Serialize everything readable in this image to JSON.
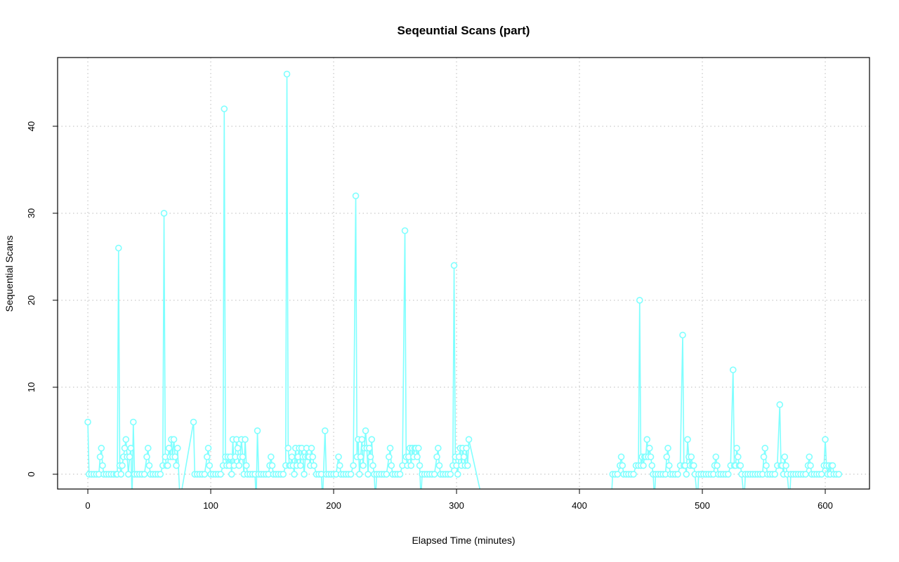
{
  "chart_data": {
    "type": "line",
    "title": "Seqeuntial Scans (part)",
    "xlabel": "Elapsed Time (minutes)",
    "ylabel": "Sequential Scans",
    "xlim": [
      -24.6,
      636
    ],
    "ylim": [
      -1.7,
      47.9
    ],
    "xticks": [
      "0",
      "100",
      "200",
      "300",
      "400",
      "500",
      "600"
    ],
    "yticks": [
      "0",
      "10",
      "20",
      "30",
      "40"
    ],
    "grid": true,
    "markers": "open-circle",
    "color": "#80ffff",
    "segments": [
      {
        "x": [
          0,
          1,
          3,
          5,
          7,
          9,
          10,
          11,
          12,
          13,
          15,
          17,
          19,
          21,
          23,
          24,
          25,
          26,
          27,
          28,
          29,
          30,
          31,
          32,
          33,
          34,
          35,
          36,
          37,
          38,
          40,
          42,
          44,
          46,
          48,
          49,
          50,
          51,
          53,
          55,
          57,
          59,
          61,
          62,
          63,
          64,
          65,
          66,
          67,
          68,
          69,
          70,
          71,
          72,
          73,
          75,
          86,
          87,
          89,
          91,
          93,
          95,
          97,
          98,
          99,
          100,
          102,
          104,
          106,
          108,
          110,
          111,
          112,
          113,
          114,
          115,
          116,
          117,
          118,
          119,
          120,
          121,
          122,
          123,
          124,
          125,
          126,
          127,
          128,
          129,
          130,
          132,
          134,
          136,
          137,
          138,
          139,
          141,
          143,
          145,
          147,
          148,
          149,
          150,
          151,
          153,
          155,
          157,
          159,
          161,
          162,
          163,
          164,
          165,
          166,
          167,
          168,
          169,
          170,
          171,
          172,
          173,
          174,
          175,
          176,
          177,
          178,
          179,
          180,
          181,
          182,
          183,
          184,
          186,
          188,
          190,
          191,
          193,
          194,
          196,
          198,
          200,
          202,
          204,
          205,
          206,
          208,
          210,
          212,
          214,
          216,
          218,
          219,
          220,
          221,
          222,
          223,
          224,
          225,
          226,
          227,
          228,
          229,
          230,
          231,
          232,
          233,
          234,
          235,
          237,
          239,
          241,
          243,
          245,
          246,
          247,
          248,
          250,
          252,
          254,
          256,
          258,
          259,
          260,
          261,
          262,
          263,
          264,
          265,
          266,
          267,
          268,
          269,
          270,
          271,
          272,
          274,
          276,
          278,
          280,
          282,
          284,
          285,
          286,
          287,
          289,
          291,
          293,
          295,
          297,
          298,
          299,
          300,
          301,
          302,
          303,
          304,
          305,
          306,
          307,
          308,
          309,
          310,
          321
        ],
        "y": [
          6,
          0,
          0,
          0,
          0,
          0,
          2,
          3,
          1,
          0,
          0,
          0,
          0,
          0,
          0,
          0,
          26,
          1,
          0,
          1,
          2,
          3,
          4,
          2,
          0,
          2,
          3,
          -3,
          6,
          0,
          0,
          0,
          0,
          0,
          2,
          3,
          1,
          0,
          0,
          0,
          0,
          0,
          1,
          30,
          2,
          1,
          1,
          3,
          2,
          4,
          2,
          4,
          2,
          1,
          3,
          -3,
          6,
          0,
          0,
          0,
          0,
          0,
          2,
          3,
          1,
          0,
          0,
          0,
          0,
          0,
          1,
          42,
          2,
          1,
          2,
          1,
          2,
          0,
          4,
          1,
          2,
          4,
          3,
          1,
          2,
          4,
          2,
          0,
          4,
          1,
          0,
          0,
          0,
          0,
          -3,
          5,
          0,
          0,
          0,
          0,
          0,
          1,
          2,
          1,
          0,
          0,
          0,
          0,
          0,
          1,
          46,
          3,
          1,
          1,
          2,
          1,
          0,
          3,
          1,
          2,
          3,
          1,
          3,
          2,
          0,
          2,
          3,
          2,
          2,
          1,
          3,
          2,
          1,
          0,
          0,
          0,
          -3,
          5,
          0,
          0,
          0,
          0,
          0,
          2,
          1,
          0,
          0,
          0,
          0,
          0,
          1,
          32,
          2,
          4,
          0,
          2,
          4,
          1,
          3,
          5,
          3,
          0,
          3,
          2,
          4,
          1,
          0,
          -3,
          0,
          0,
          0,
          0,
          0,
          2,
          3,
          1,
          0,
          0,
          0,
          0,
          1,
          28,
          2,
          1,
          2,
          3,
          1,
          3,
          2,
          3,
          3,
          2,
          3,
          1,
          -3,
          0,
          0,
          0,
          0,
          0,
          0,
          2,
          3,
          1,
          0,
          0,
          0,
          0,
          0,
          1,
          24,
          2,
          1,
          0,
          2,
          3,
          1,
          3,
          2,
          1,
          3,
          1,
          4,
          -3
        ]
      },
      {
        "x": [
          426,
          427,
          429,
          431,
          433,
          434,
          435,
          436,
          438,
          440,
          442,
          444,
          446,
          448,
          449,
          450,
          451,
          452,
          453,
          454,
          455,
          456,
          457,
          458,
          459,
          460,
          461,
          462,
          464,
          466,
          468,
          470,
          471,
          472,
          473,
          474,
          476,
          478,
          480,
          482,
          484,
          485,
          486,
          487,
          488,
          489,
          490,
          491,
          492,
          493,
          494,
          496,
          497,
          499,
          501,
          503,
          505,
          507,
          509,
          510,
          511,
          512,
          513,
          515,
          517,
          519,
          521,
          523,
          525,
          526,
          527,
          528,
          529,
          530,
          531,
          532,
          534,
          535,
          537,
          539,
          541,
          543,
          545,
          547,
          549,
          550,
          551,
          552,
          553,
          555,
          557,
          559,
          561,
          563,
          564,
          565,
          566,
          567,
          568,
          569,
          571,
          572,
          574,
          576,
          578,
          580,
          582,
          584,
          586,
          587,
          588,
          589,
          591,
          593,
          595,
          597,
          599,
          600,
          601,
          602,
          603,
          604,
          605,
          606,
          607,
          609,
          611
        ],
        "y": [
          -3,
          0,
          0,
          0,
          1,
          2,
          1,
          0,
          0,
          0,
          0,
          0,
          1,
          1,
          20,
          1,
          2,
          1,
          2,
          2,
          4,
          2,
          3,
          2,
          1,
          0,
          -3,
          0,
          0,
          0,
          0,
          0,
          2,
          3,
          1,
          0,
          0,
          0,
          0,
          1,
          16,
          1,
          1,
          0,
          4,
          2,
          1,
          2,
          1,
          1,
          0,
          -3,
          0,
          0,
          0,
          0,
          0,
          0,
          0,
          1,
          2,
          1,
          0,
          0,
          0,
          0,
          0,
          1,
          12,
          1,
          1,
          3,
          2,
          1,
          1,
          0,
          -3,
          0,
          0,
          0,
          0,
          0,
          0,
          0,
          0,
          2,
          3,
          1,
          0,
          0,
          0,
          0,
          1,
          8,
          1,
          1,
          0,
          2,
          1,
          0,
          -3,
          0,
          0,
          0,
          0,
          0,
          0,
          0,
          1,
          2,
          1,
          0,
          0,
          0,
          0,
          0,
          1,
          4,
          1,
          0,
          1,
          0,
          1,
          1,
          0,
          0,
          0
        ]
      }
    ]
  }
}
